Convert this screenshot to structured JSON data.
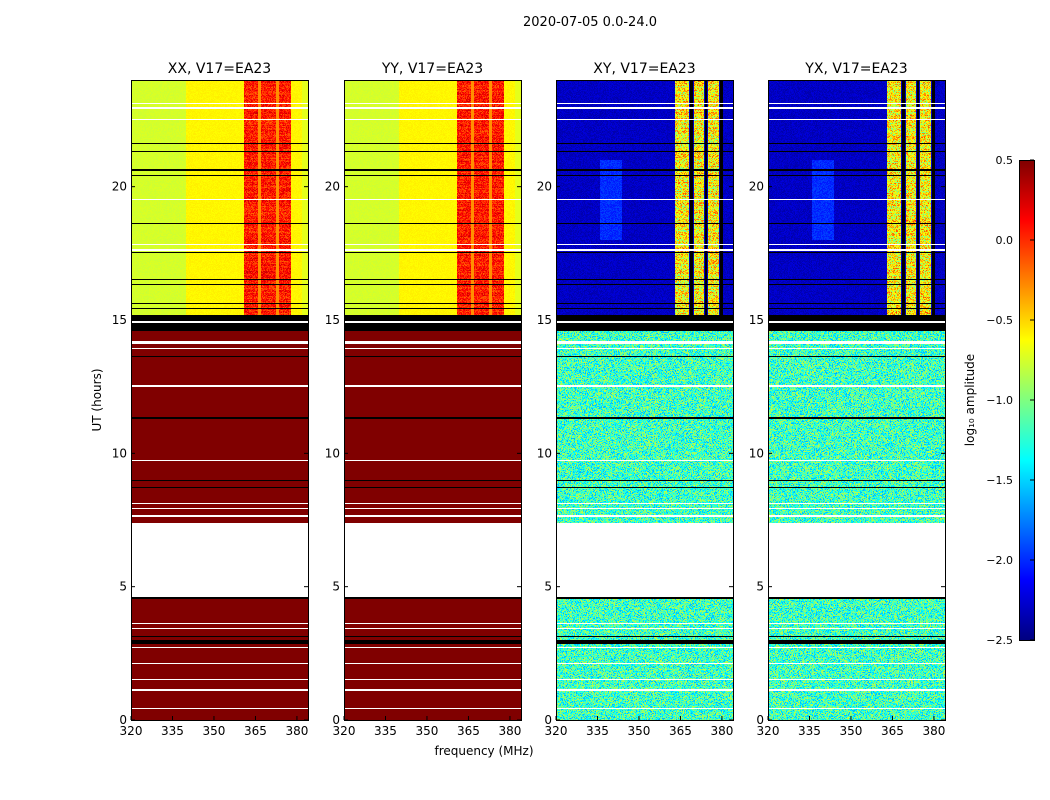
{
  "chart_data": {
    "type": "heatmap",
    "title": "2020-07-05 0.0-24.0",
    "xlabel": "frequency (MHz)",
    "ylabel": "UT (hours)",
    "xlim": [
      320,
      384
    ],
    "ylim": [
      0,
      24
    ],
    "xticks": [
      320,
      335,
      350,
      365,
      380
    ],
    "yticks": [
      0,
      5,
      10,
      15,
      20
    ],
    "panels": [
      {
        "title": "XX, V17=EA23",
        "pol": "parallel"
      },
      {
        "title": "YY, V17=EA23",
        "pol": "parallel"
      },
      {
        "title": "XY, V17=EA23",
        "pol": "cross"
      },
      {
        "title": "YX, V17=EA23",
        "pol": "cross"
      }
    ],
    "colorbar": {
      "label": "log₁₀ amplitude",
      "range": [
        -2.5,
        0.5
      ],
      "ticks": [
        "0.5",
        "0.0",
        "−0.5",
        "−1.0",
        "−1.5",
        "−2.0",
        "−2.5"
      ],
      "tick_values": [
        0.5,
        0.0,
        -0.5,
        -1.0,
        -1.5,
        -2.0,
        -2.5
      ],
      "colormap": "jet"
    },
    "regions": {
      "parallel": {
        "early_hours": [
          0,
          15
        ],
        "early_value": 0.5,
        "late_base": -0.65,
        "rfi_mhz": [
          361,
          378
        ],
        "rfi_value": 0.05
      },
      "cross": {
        "early_hours": [
          0,
          14.6
        ],
        "early_value": -1.2,
        "late_base": -2.3,
        "rfi_mhz": [
          [
            363,
            368
          ],
          [
            370,
            373.5
          ],
          [
            375,
            379
          ]
        ],
        "rfi_value": -0.6
      }
    },
    "flagged_white_hours": [
      [
        4.6,
        7.4
      ],
      [
        0.4,
        0.45
      ],
      [
        1.1,
        1.15
      ],
      [
        1.5,
        1.55
      ],
      [
        2.1,
        2.15
      ],
      [
        2.7,
        2.75
      ],
      [
        3.4,
        3.45
      ],
      [
        3.6,
        3.65
      ],
      [
        7.6,
        7.7
      ],
      [
        7.9,
        7.95
      ],
      [
        8.1,
        8.15
      ],
      [
        9.7,
        9.75
      ],
      [
        12.5,
        12.55
      ],
      [
        13.9,
        13.95
      ],
      [
        14.1,
        14.2
      ],
      [
        14.9,
        14.95
      ],
      [
        17.6,
        17.65
      ],
      [
        17.8,
        17.85
      ],
      [
        19.5,
        19.55
      ],
      [
        22.5,
        22.55
      ],
      [
        22.9,
        23.0
      ],
      [
        23.1,
        23.15
      ]
    ],
    "flagged_black_hours": [
      [
        2.85,
        3.0
      ],
      [
        3.1,
        3.15
      ],
      [
        4.55,
        4.6
      ],
      [
        8.7,
        8.75
      ],
      [
        8.95,
        9.0
      ],
      [
        11.3,
        11.35
      ],
      [
        13.6,
        13.65
      ],
      [
        14.6,
        14.88
      ],
      [
        14.96,
        15.2
      ],
      [
        15.4,
        15.45
      ],
      [
        15.6,
        15.65
      ],
      [
        16.3,
        16.35
      ],
      [
        16.5,
        16.55
      ],
      [
        17.5,
        17.55
      ],
      [
        18.6,
        18.65
      ],
      [
        20.4,
        20.45
      ],
      [
        20.6,
        20.65
      ],
      [
        21.3,
        21.35
      ],
      [
        21.6,
        21.65
      ]
    ]
  }
}
